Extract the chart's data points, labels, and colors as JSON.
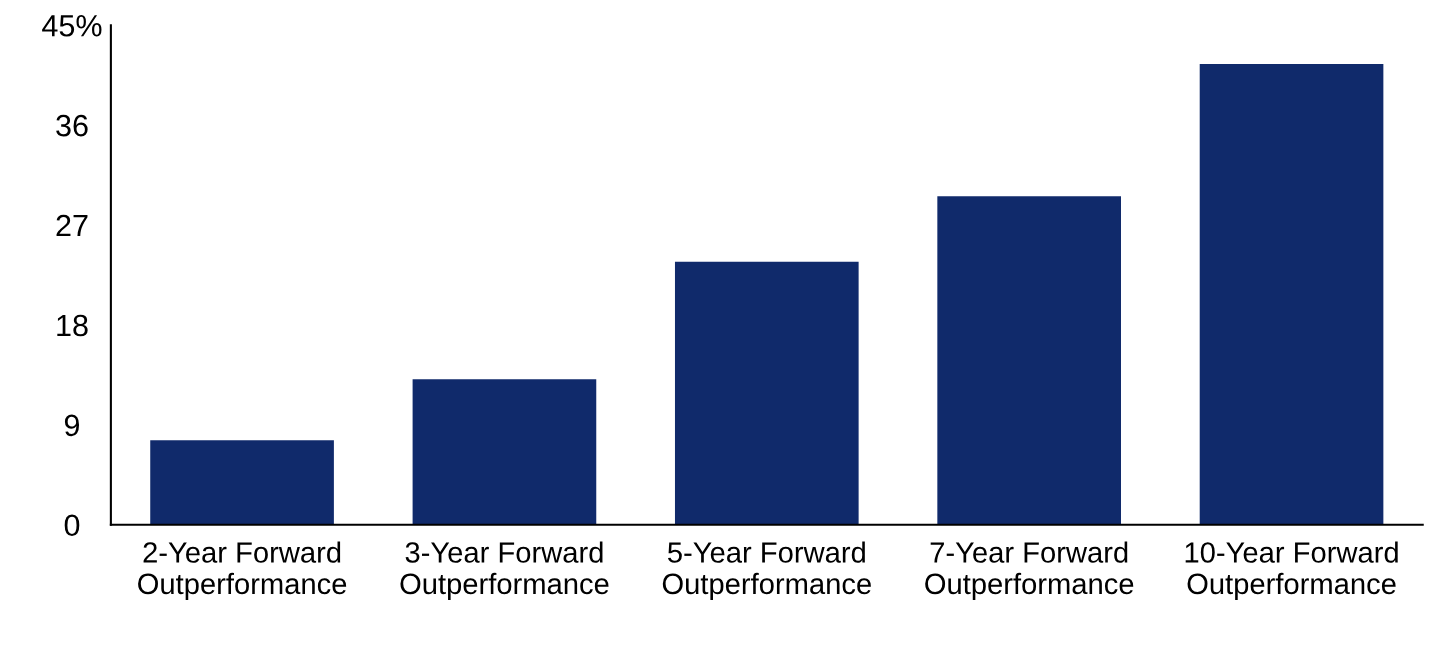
{
  "chart_data": {
    "type": "bar",
    "categories": [
      "2-Year Forward\nOutperformance",
      "3-Year Forward\nOutperformance",
      "5-Year Forward\nOutperformance",
      "7-Year Forward\nOutperformance",
      "10-Year Forward\nOutperformance"
    ],
    "values": [
      7.6,
      13.1,
      23.7,
      29.6,
      41.5
    ],
    "color": "#102a6b",
    "ylim": [
      0,
      45
    ],
    "yticks": [
      0,
      9,
      18,
      27,
      36,
      {
        "value": 45,
        "label": "45%"
      }
    ],
    "grid": false,
    "legend": false
  }
}
